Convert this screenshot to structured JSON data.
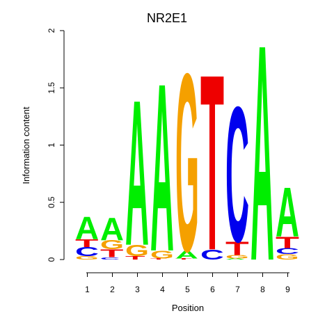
{
  "chart_data": {
    "type": "sequence-logo",
    "title": "NR2E1",
    "xlabel": "Position",
    "ylabel": "Information content",
    "ylim": [
      0,
      2
    ],
    "yticks": [
      "0",
      "0.5",
      "1",
      "1.5",
      "2"
    ],
    "positions": [
      "1",
      "2",
      "3",
      "4",
      "5",
      "6",
      "7",
      "8",
      "9"
    ],
    "colors": {
      "A": "#00ee00",
      "C": "#0000ee",
      "G": "#f5a000",
      "T": "#ee0000"
    },
    "stacks": [
      [
        {
          "base": "G",
          "height": 0.03
        },
        {
          "base": "C",
          "height": 0.08
        },
        {
          "base": "T",
          "height": 0.07
        },
        {
          "base": "A",
          "height": 0.2
        }
      ],
      [
        {
          "base": "C",
          "height": 0.02
        },
        {
          "base": "T",
          "height": 0.07
        },
        {
          "base": "G",
          "height": 0.08
        },
        {
          "base": "A",
          "height": 0.2
        }
      ],
      [
        {
          "base": "T",
          "height": 0.03
        },
        {
          "base": "G",
          "height": 0.1
        },
        {
          "base": "A",
          "height": 1.3
        }
      ],
      [
        {
          "base": "T",
          "height": 0.01
        },
        {
          "base": "G",
          "height": 0.07
        },
        {
          "base": "A",
          "height": 1.5
        }
      ],
      [
        {
          "base": "T",
          "height": 0.01
        },
        {
          "base": "A",
          "height": 0.07
        },
        {
          "base": "G",
          "height": 1.59
        }
      ],
      [
        {
          "base": "C",
          "height": 0.09
        },
        {
          "base": "T",
          "height": 1.57
        }
      ],
      [
        {
          "base": "A",
          "height": 0.01
        },
        {
          "base": "G",
          "height": 0.03
        },
        {
          "base": "T",
          "height": 0.12
        },
        {
          "base": "C",
          "height": 1.21
        }
      ],
      [
        {
          "base": "A",
          "height": 1.93
        }
      ],
      [
        {
          "base": "G",
          "height": 0.05
        },
        {
          "base": "C",
          "height": 0.05
        },
        {
          "base": "T",
          "height": 0.1
        },
        {
          "base": "A",
          "height": 0.44
        }
      ]
    ]
  }
}
